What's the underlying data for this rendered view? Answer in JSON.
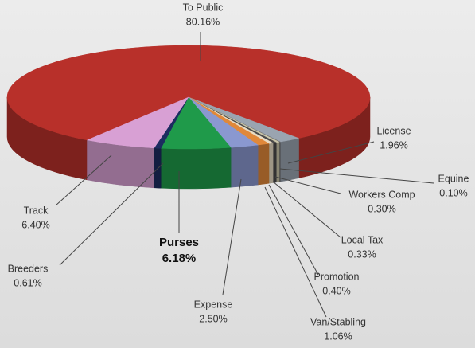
{
  "chart_data": {
    "type": "pie",
    "categories": [
      "To Public",
      "License",
      "Equine",
      "Workers Comp",
      "Local Tax",
      "Promotion",
      "Van/Stabling",
      "Expense",
      "Purses",
      "Breeders",
      "Track"
    ],
    "values": [
      80.16,
      1.96,
      0.1,
      0.3,
      0.33,
      0.4,
      1.06,
      2.5,
      6.18,
      0.61,
      6.4
    ],
    "value_labels": [
      "80.16%",
      "1.96%",
      "0.10%",
      "0.30%",
      "0.33%",
      "0.40%",
      "1.06%",
      "2.50%",
      "6.18%",
      "0.61%",
      "6.40%"
    ],
    "colors": [
      "#b8302a",
      "#9aa4b0",
      "#6a6a6a",
      "#c8c4a8",
      "#4a4a4a",
      "#e8dcc4",
      "#e0883a",
      "#8a98d0",
      "#1f9a4a",
      "#1c2c60",
      "#d8a0d4"
    ]
  }
}
